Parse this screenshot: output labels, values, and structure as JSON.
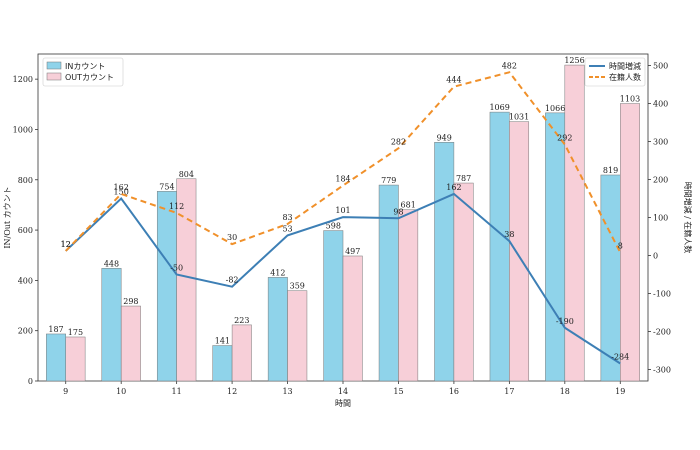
{
  "chart_data": {
    "type": "bar",
    "xlabel": "時間",
    "ylabel_left": "IN/Out カウント",
    "ylabel_right": "時間増減 / 在籍人数",
    "categories": [
      "9",
      "10",
      "11",
      "12",
      "13",
      "14",
      "15",
      "16",
      "17",
      "18",
      "19"
    ],
    "ylim_left": [
      0,
      1300
    ],
    "yticks_left": [
      0,
      200,
      400,
      600,
      800,
      1000,
      1200
    ],
    "ylim_right": [
      -330,
      530
    ],
    "yticks_right": [
      -300,
      -200,
      -100,
      0,
      100,
      200,
      300,
      400,
      500
    ],
    "bar_series": [
      {
        "name": "INカウント",
        "color": "#8fd3ea",
        "values": [
          187,
          448,
          754,
          141,
          412,
          598,
          779,
          949,
          1069,
          1066,
          819
        ]
      },
      {
        "name": "OUTカウント",
        "color": "#f7cfd8",
        "values": [
          175,
          298,
          804,
          223,
          359,
          497,
          681,
          787,
          1031,
          1256,
          1103
        ]
      }
    ],
    "line_series": [
      {
        "name": "時間増減",
        "color": "#3d7fb5",
        "style": "solid",
        "values": [
          12,
          150,
          -50,
          -82,
          53,
          101,
          98,
          162,
          38,
          -190,
          -284
        ]
      },
      {
        "name": "在籍人数",
        "color": "#f0902a",
        "style": "dashed",
        "values": [
          12,
          162,
          112,
          30,
          83,
          184,
          282,
          444,
          482,
          292,
          8
        ]
      }
    ],
    "legend_left": "top-left",
    "legend_right": "top-right",
    "grid": false
  }
}
